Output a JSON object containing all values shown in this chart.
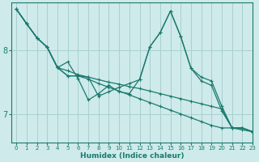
{
  "xlabel": "Humidex (Indice chaleur)",
  "background_color": "#ceeaea",
  "grid_color": "#aacfcf",
  "line_color": "#1a7a6e",
  "xlim": [
    -0.5,
    23
  ],
  "ylim": [
    6.55,
    8.75
  ],
  "yticks": [
    7,
    8
  ],
  "xticks": [
    0,
    1,
    2,
    3,
    4,
    5,
    6,
    7,
    8,
    9,
    10,
    11,
    12,
    13,
    14,
    15,
    16,
    17,
    18,
    19,
    20,
    21,
    22,
    23
  ],
  "series": [
    [
      8.65,
      8.42,
      8.2,
      8.05,
      7.73,
      7.6,
      7.6,
      7.58,
      7.54,
      7.5,
      7.47,
      7.43,
      7.4,
      7.36,
      7.32,
      7.28,
      7.24,
      7.2,
      7.16,
      7.12,
      7.08,
      6.78,
      6.78,
      6.72
    ],
    [
      8.65,
      8.42,
      8.2,
      8.05,
      7.73,
      7.6,
      7.6,
      7.55,
      7.48,
      7.42,
      7.36,
      7.3,
      7.24,
      7.18,
      7.12,
      7.06,
      7.0,
      6.94,
      6.88,
      6.82,
      6.78,
      6.78,
      6.75,
      6.72
    ],
    [
      8.65,
      8.42,
      8.2,
      8.05,
      7.73,
      7.68,
      7.62,
      7.58,
      7.28,
      7.35,
      7.42,
      7.48,
      7.54,
      8.06,
      8.28,
      8.62,
      8.22,
      7.72,
      7.58,
      7.52,
      7.12,
      6.78,
      6.78,
      6.72
    ],
    [
      8.65,
      8.42,
      8.2,
      8.05,
      7.73,
      7.82,
      7.56,
      7.22,
      7.32,
      7.45,
      7.35,
      7.32,
      7.55,
      8.06,
      8.28,
      8.62,
      8.22,
      7.72,
      7.52,
      7.45,
      7.05,
      6.78,
      6.78,
      6.72
    ]
  ]
}
